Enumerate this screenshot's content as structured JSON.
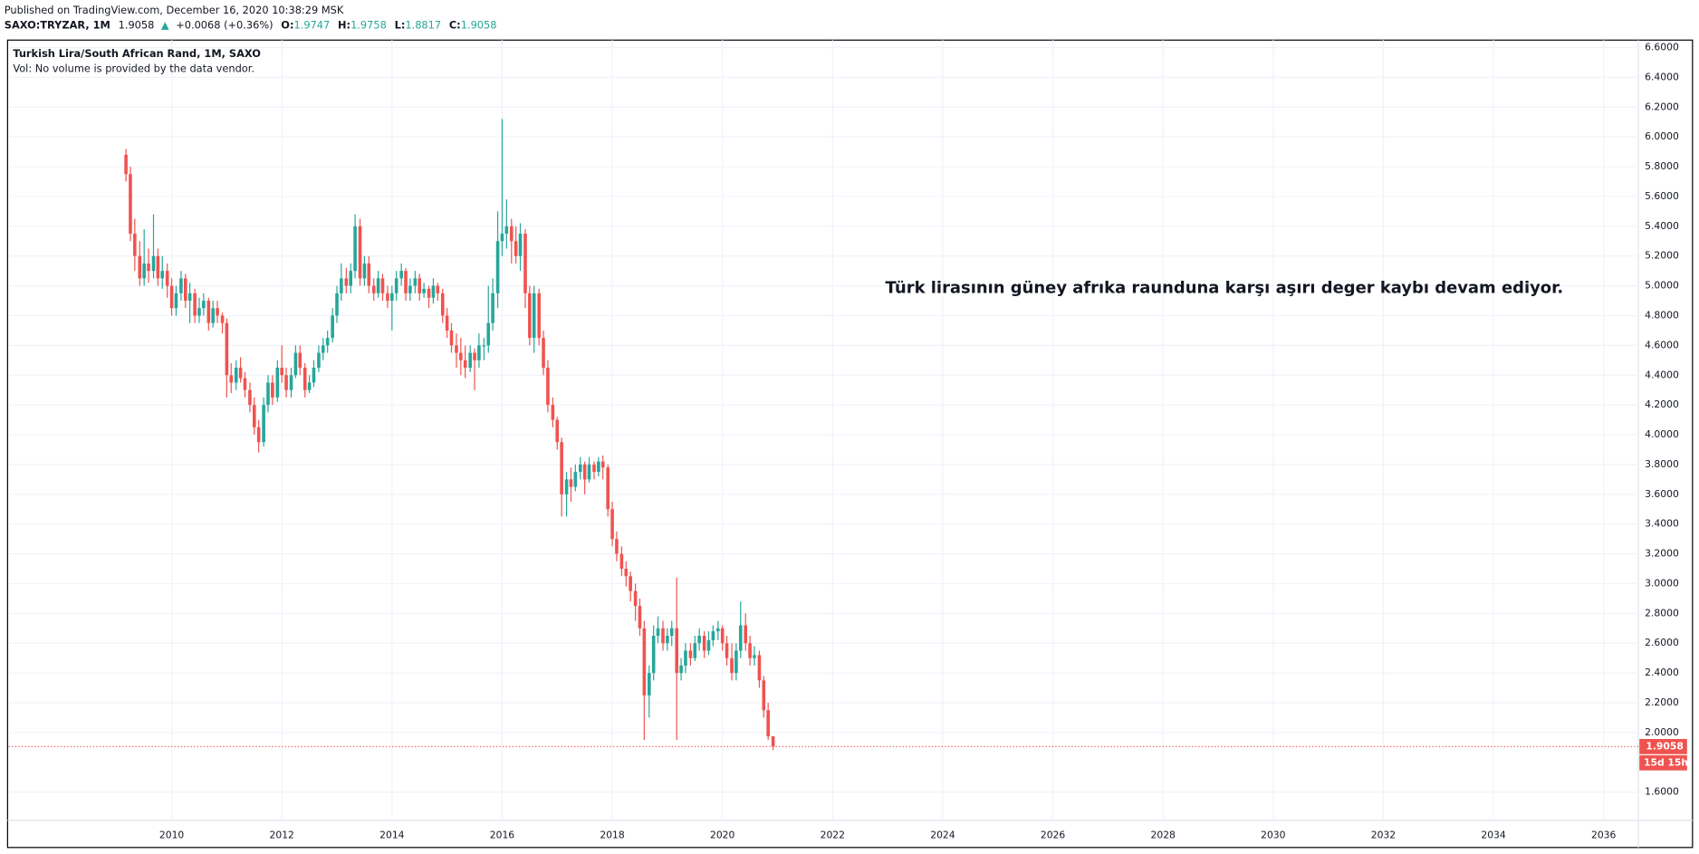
{
  "header": {
    "published": "Published on TradingView.com, December 16, 2020 10:38:29 MSK",
    "symbol": "SAXO:TRYZAR, 1M",
    "last": "1.9058",
    "arrow": "▲",
    "change": "+0.0068 (+0.36%)",
    "o_label": "O:",
    "o": "1.9747",
    "h_label": "H:",
    "h": "1.9758",
    "l_label": "L:",
    "l": "1.8817",
    "c_label": "C:",
    "c": "1.9058"
  },
  "chart_data": {
    "type": "candlestick",
    "title": "Turkish Lira/South African Rand, 1M, SAXO",
    "subtitle": "Vol: No volume is provided by the data vendor.",
    "annotation": {
      "text": "Türk lirasının güney afrıka raunduna karşı aşırı deger kaybı devam ediyor.",
      "color": "#ff0000"
    },
    "up_color": "#26a69a",
    "down_color": "#ef5350",
    "grid": true,
    "xlim": [
      2007.04,
      2036.63
    ],
    "ylim": [
      1.41,
      6.65
    ],
    "xticks": [
      2010,
      2012,
      2014,
      2016,
      2018,
      2020,
      2022,
      2024,
      2026,
      2028,
      2030,
      2032,
      2034,
      2036
    ],
    "yticks": [
      {
        "value": 1.6,
        "label": "1.6000"
      },
      {
        "value": 2.0,
        "label": "2.0000"
      },
      {
        "value": 2.2,
        "label": "2.2000"
      },
      {
        "value": 2.4,
        "label": "2.4000"
      },
      {
        "value": 2.6,
        "label": "2.6000"
      },
      {
        "value": 2.8,
        "label": "2.8000"
      },
      {
        "value": 3.0,
        "label": "3.0000"
      },
      {
        "value": 3.2,
        "label": "3.2000"
      },
      {
        "value": 3.4,
        "label": "3.4000"
      },
      {
        "value": 3.6,
        "label": "3.6000"
      },
      {
        "value": 3.8,
        "label": "3.8000"
      },
      {
        "value": 4.0,
        "label": "4.0000"
      },
      {
        "value": 4.2,
        "label": "4.2000"
      },
      {
        "value": 4.4,
        "label": "4.4000"
      },
      {
        "value": 4.6,
        "label": "4.6000"
      },
      {
        "value": 4.8,
        "label": "4.8000"
      },
      {
        "value": 5.0,
        "label": "5.0000"
      },
      {
        "value": 5.2,
        "label": "5.2000"
      },
      {
        "value": 5.4,
        "label": "5.4000"
      },
      {
        "value": 5.6,
        "label": "5.6000"
      },
      {
        "value": 5.8,
        "label": "5.8000"
      },
      {
        "value": 6.0,
        "label": "6.0000"
      },
      {
        "value": 6.2,
        "label": "6.2000"
      },
      {
        "value": 6.4,
        "label": "6.4000"
      },
      {
        "value": 6.6,
        "label": "6.6000"
      }
    ],
    "last_price": {
      "value": 1.9058,
      "label": "1.9058",
      "color": "#ef5350"
    },
    "countdown": "15d 15h",
    "x": [
      2009.17,
      2009.25,
      2009.33,
      2009.42,
      2009.5,
      2009.58,
      2009.67,
      2009.75,
      2009.83,
      2009.92,
      2010.0,
      2010.08,
      2010.17,
      2010.25,
      2010.33,
      2010.42,
      2010.5,
      2010.58,
      2010.67,
      2010.75,
      2010.83,
      2010.92,
      2011.0,
      2011.08,
      2011.17,
      2011.25,
      2011.33,
      2011.42,
      2011.5,
      2011.58,
      2011.67,
      2011.75,
      2011.83,
      2011.92,
      2012.0,
      2012.08,
      2012.17,
      2012.25,
      2012.33,
      2012.42,
      2012.5,
      2012.58,
      2012.67,
      2012.75,
      2012.83,
      2012.92,
      2013.0,
      2013.08,
      2013.17,
      2013.25,
      2013.33,
      2013.42,
      2013.5,
      2013.58,
      2013.67,
      2013.75,
      2013.83,
      2013.92,
      2014.0,
      2014.08,
      2014.17,
      2014.25,
      2014.33,
      2014.42,
      2014.5,
      2014.58,
      2014.67,
      2014.75,
      2014.83,
      2014.92,
      2015.0,
      2015.08,
      2015.17,
      2015.25,
      2015.33,
      2015.42,
      2015.5,
      2015.58,
      2015.67,
      2015.75,
      2015.83,
      2015.92,
      2016.0,
      2016.08,
      2016.17,
      2016.25,
      2016.33,
      2016.42,
      2016.5,
      2016.58,
      2016.67,
      2016.75,
      2016.83,
      2016.92,
      2017.0,
      2017.08,
      2017.17,
      2017.25,
      2017.33,
      2017.42,
      2017.5,
      2017.58,
      2017.67,
      2017.75,
      2017.83,
      2017.92,
      2018.0,
      2018.08,
      2018.17,
      2018.25,
      2018.33,
      2018.42,
      2018.5,
      2018.58,
      2018.67,
      2018.75,
      2018.83,
      2018.92,
      2019.0,
      2019.08,
      2019.17,
      2019.25,
      2019.33,
      2019.42,
      2019.5,
      2019.58,
      2019.67,
      2019.75,
      2019.83,
      2019.92,
      2020.0,
      2020.08,
      2020.17,
      2020.25,
      2020.33,
      2020.42,
      2020.5,
      2020.58,
      2020.67,
      2020.75,
      2020.83,
      2020.92
    ],
    "candles": [
      [
        5.88,
        5.92,
        5.7,
        5.75
      ],
      [
        5.75,
        5.8,
        5.3,
        5.35
      ],
      [
        5.35,
        5.45,
        5.1,
        5.2
      ],
      [
        5.2,
        5.3,
        5.0,
        5.05
      ],
      [
        5.05,
        5.38,
        5.0,
        5.15
      ],
      [
        5.15,
        5.25,
        5.02,
        5.1
      ],
      [
        5.1,
        5.48,
        5.05,
        5.2
      ],
      [
        5.2,
        5.25,
        5.0,
        5.05
      ],
      [
        5.05,
        5.2,
        4.98,
        5.1
      ],
      [
        5.1,
        5.15,
        4.92,
        5.0
      ],
      [
        5.0,
        5.05,
        4.8,
        4.85
      ],
      [
        4.85,
        5.0,
        4.8,
        4.95
      ],
      [
        4.95,
        5.1,
        4.9,
        5.05
      ],
      [
        5.05,
        5.08,
        4.85,
        4.9
      ],
      [
        4.9,
        5.02,
        4.75,
        4.95
      ],
      [
        4.95,
        4.98,
        4.75,
        4.8
      ],
      [
        4.8,
        4.92,
        4.75,
        4.85
      ],
      [
        4.85,
        4.95,
        4.8,
        4.9
      ],
      [
        4.9,
        4.92,
        4.7,
        4.75
      ],
      [
        4.75,
        4.9,
        4.72,
        4.85
      ],
      [
        4.85,
        4.9,
        4.75,
        4.8
      ],
      [
        4.8,
        4.82,
        4.68,
        4.75
      ],
      [
        4.75,
        4.78,
        4.25,
        4.4
      ],
      [
        4.4,
        4.48,
        4.28,
        4.35
      ],
      [
        4.35,
        4.5,
        4.3,
        4.45
      ],
      [
        4.45,
        4.52,
        4.35,
        4.38
      ],
      [
        4.38,
        4.42,
        4.25,
        4.3
      ],
      [
        4.3,
        4.35,
        4.15,
        4.2
      ],
      [
        4.2,
        4.25,
        4.0,
        4.05
      ],
      [
        4.05,
        4.1,
        3.88,
        3.95
      ],
      [
        3.95,
        4.25,
        3.92,
        4.2
      ],
      [
        4.2,
        4.4,
        4.15,
        4.35
      ],
      [
        4.35,
        4.4,
        4.2,
        4.25
      ],
      [
        4.25,
        4.5,
        4.22,
        4.45
      ],
      [
        4.45,
        4.6,
        4.35,
        4.4
      ],
      [
        4.4,
        4.45,
        4.25,
        4.3
      ],
      [
        4.3,
        4.45,
        4.25,
        4.4
      ],
      [
        4.4,
        4.6,
        4.38,
        4.55
      ],
      [
        4.55,
        4.6,
        4.4,
        4.45
      ],
      [
        4.45,
        4.48,
        4.25,
        4.3
      ],
      [
        4.3,
        4.4,
        4.28,
        4.35
      ],
      [
        4.35,
        4.5,
        4.32,
        4.45
      ],
      [
        4.45,
        4.6,
        4.42,
        4.55
      ],
      [
        4.55,
        4.65,
        4.5,
        4.6
      ],
      [
        4.6,
        4.7,
        4.55,
        4.65
      ],
      [
        4.65,
        4.85,
        4.62,
        4.8
      ],
      [
        4.8,
        5.0,
        4.75,
        4.95
      ],
      [
        4.95,
        5.15,
        4.9,
        5.05
      ],
      [
        5.05,
        5.12,
        4.95,
        5.0
      ],
      [
        5.0,
        5.15,
        4.95,
        5.1
      ],
      [
        5.1,
        5.48,
        5.05,
        5.4
      ],
      [
        5.4,
        5.45,
        5.0,
        5.05
      ],
      [
        5.05,
        5.2,
        5.0,
        5.15
      ],
      [
        5.15,
        5.2,
        4.95,
        5.0
      ],
      [
        5.0,
        5.05,
        4.9,
        4.95
      ],
      [
        4.95,
        5.1,
        4.92,
        5.05
      ],
      [
        5.05,
        5.08,
        4.9,
        4.95
      ],
      [
        4.95,
        5.0,
        4.85,
        4.9
      ],
      [
        4.9,
        5.0,
        4.7,
        4.95
      ],
      [
        4.95,
        5.1,
        4.9,
        5.05
      ],
      [
        5.05,
        5.15,
        5.0,
        5.1
      ],
      [
        5.1,
        5.12,
        4.9,
        4.95
      ],
      [
        4.95,
        5.05,
        4.9,
        5.0
      ],
      [
        5.0,
        5.1,
        4.95,
        5.05
      ],
      [
        5.05,
        5.08,
        4.9,
        4.95
      ],
      [
        4.95,
        5.02,
        4.92,
        4.98
      ],
      [
        4.98,
        5.0,
        4.85,
        4.92
      ],
      [
        4.92,
        5.05,
        4.88,
        5.0
      ],
      [
        5.0,
        5.02,
        4.9,
        4.95
      ],
      [
        4.95,
        4.98,
        4.75,
        4.8
      ],
      [
        4.8,
        4.85,
        4.65,
        4.7
      ],
      [
        4.7,
        4.75,
        4.55,
        4.6
      ],
      [
        4.6,
        4.68,
        4.45,
        4.55
      ],
      [
        4.55,
        4.65,
        4.4,
        4.5
      ],
      [
        4.5,
        4.6,
        4.38,
        4.45
      ],
      [
        4.45,
        4.6,
        4.42,
        4.55
      ],
      [
        4.55,
        4.58,
        4.3,
        4.5
      ],
      [
        4.5,
        4.68,
        4.45,
        4.6
      ],
      [
        4.6,
        4.65,
        4.5,
        4.6
      ],
      [
        4.6,
        5.0,
        4.55,
        4.75
      ],
      [
        4.75,
        5.05,
        4.7,
        4.95
      ],
      [
        4.95,
        5.5,
        4.85,
        5.3
      ],
      [
        5.3,
        6.12,
        5.2,
        5.35
      ],
      [
        5.35,
        5.58,
        5.25,
        5.4
      ],
      [
        5.4,
        5.45,
        5.15,
        5.3
      ],
      [
        5.3,
        5.4,
        5.15,
        5.2
      ],
      [
        5.2,
        5.42,
        5.1,
        5.35
      ],
      [
        5.35,
        5.38,
        4.85,
        4.95
      ],
      [
        4.95,
        5.0,
        4.6,
        4.65
      ],
      [
        4.65,
        5.0,
        4.55,
        4.95
      ],
      [
        4.95,
        4.98,
        4.6,
        4.65
      ],
      [
        4.65,
        4.7,
        4.4,
        4.45
      ],
      [
        4.45,
        4.5,
        4.15,
        4.2
      ],
      [
        4.2,
        4.25,
        4.05,
        4.1
      ],
      [
        4.1,
        4.12,
        3.9,
        3.95
      ],
      [
        3.95,
        3.98,
        3.45,
        3.6
      ],
      [
        3.6,
        3.75,
        3.45,
        3.7
      ],
      [
        3.7,
        3.78,
        3.55,
        3.65
      ],
      [
        3.65,
        3.8,
        3.62,
        3.75
      ],
      [
        3.75,
        3.85,
        3.7,
        3.8
      ],
      [
        3.8,
        3.82,
        3.6,
        3.7
      ],
      [
        3.7,
        3.85,
        3.68,
        3.8
      ],
      [
        3.8,
        3.82,
        3.7,
        3.75
      ],
      [
        3.75,
        3.85,
        3.72,
        3.82
      ],
      [
        3.82,
        3.86,
        3.7,
        3.78
      ],
      [
        3.78,
        3.8,
        3.45,
        3.5
      ],
      [
        3.5,
        3.55,
        3.25,
        3.3
      ],
      [
        3.3,
        3.35,
        3.15,
        3.2
      ],
      [
        3.2,
        3.25,
        3.05,
        3.1
      ],
      [
        3.1,
        3.15,
        2.98,
        3.05
      ],
      [
        3.05,
        3.08,
        2.88,
        2.95
      ],
      [
        2.95,
        3.0,
        2.75,
        2.85
      ],
      [
        2.85,
        2.9,
        2.65,
        2.7
      ],
      [
        2.7,
        2.75,
        1.95,
        2.25
      ],
      [
        2.25,
        2.45,
        2.1,
        2.4
      ],
      [
        2.4,
        2.72,
        2.35,
        2.65
      ],
      [
        2.65,
        2.78,
        2.6,
        2.7
      ],
      [
        2.7,
        2.75,
        2.55,
        2.6
      ],
      [
        2.6,
        2.7,
        2.55,
        2.65
      ],
      [
        2.65,
        2.75,
        2.58,
        2.7
      ],
      [
        2.7,
        3.04,
        1.95,
        2.4
      ],
      [
        2.4,
        2.5,
        2.35,
        2.45
      ],
      [
        2.45,
        2.6,
        2.4,
        2.55
      ],
      [
        2.55,
        2.6,
        2.45,
        2.5
      ],
      [
        2.5,
        2.65,
        2.48,
        2.6
      ],
      [
        2.6,
        2.7,
        2.55,
        2.65
      ],
      [
        2.65,
        2.68,
        2.5,
        2.55
      ],
      [
        2.55,
        2.68,
        2.52,
        2.62
      ],
      [
        2.62,
        2.72,
        2.58,
        2.68
      ],
      [
        2.68,
        2.75,
        2.62,
        2.7
      ],
      [
        2.7,
        2.72,
        2.55,
        2.6
      ],
      [
        2.6,
        2.65,
        2.45,
        2.5
      ],
      [
        2.5,
        2.6,
        2.35,
        2.4
      ],
      [
        2.4,
        2.6,
        2.35,
        2.55
      ],
      [
        2.55,
        2.88,
        2.5,
        2.72
      ],
      [
        2.72,
        2.8,
        2.55,
        2.6
      ],
      [
        2.6,
        2.65,
        2.45,
        2.5
      ],
      [
        2.5,
        2.58,
        2.45,
        2.52
      ],
      [
        2.52,
        2.55,
        2.3,
        2.35
      ],
      [
        2.35,
        2.38,
        2.1,
        2.15
      ],
      [
        2.15,
        2.2,
        1.95,
        1.9747
      ],
      [
        1.9747,
        1.9758,
        1.8817,
        1.9058
      ]
    ]
  }
}
